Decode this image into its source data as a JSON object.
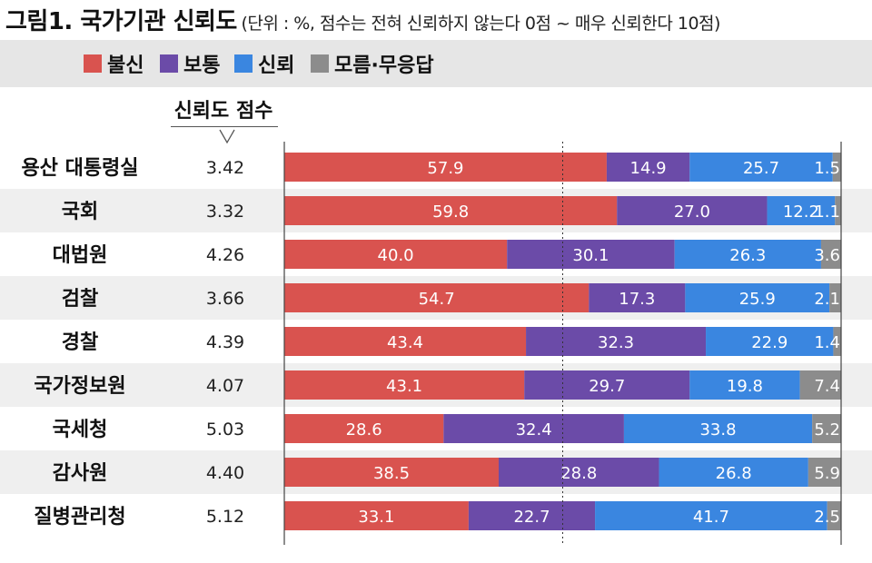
{
  "title": {
    "main": "그림1. 국가기관 신뢰도",
    "sub": "(단위 : %, 점수는 전혀 신뢰하지 않는다 0점 ~ 매우 신뢰한다 10점)"
  },
  "score_header": "신뢰도 점수",
  "chart_data": {
    "type": "bar",
    "orientation": "horizontal",
    "stacked": true,
    "normalized_percent": true,
    "categories": [
      "용산 대통령실",
      "국회",
      "대법원",
      "검찰",
      "경찰",
      "국가정보원",
      "국세청",
      "감사원",
      "질병관리청"
    ],
    "scores": [
      "3.42",
      "3.32",
      "4.26",
      "3.66",
      "4.39",
      "4.07",
      "5.03",
      "4.40",
      "5.12"
    ],
    "series": [
      {
        "name": "불신",
        "color": "#d9534f",
        "values": [
          57.9,
          59.8,
          40.0,
          54.7,
          43.4,
          43.1,
          28.6,
          38.5,
          33.1
        ]
      },
      {
        "name": "보통",
        "color": "#6b4ba8",
        "values": [
          14.9,
          27.0,
          30.1,
          17.3,
          32.3,
          29.7,
          32.4,
          28.8,
          22.7
        ]
      },
      {
        "name": "신뢰",
        "color": "#3a86e0",
        "values": [
          25.7,
          12.2,
          26.3,
          25.9,
          22.9,
          19.8,
          33.8,
          26.8,
          41.7
        ]
      },
      {
        "name": "모름·무응답",
        "color": "#8c8c8c",
        "values": [
          1.5,
          1.1,
          3.6,
          2.1,
          1.4,
          7.4,
          5.2,
          5.9,
          2.5
        ]
      }
    ],
    "reference_line": 50,
    "row_stripe_color": "#efefef",
    "legend_position": "top"
  }
}
